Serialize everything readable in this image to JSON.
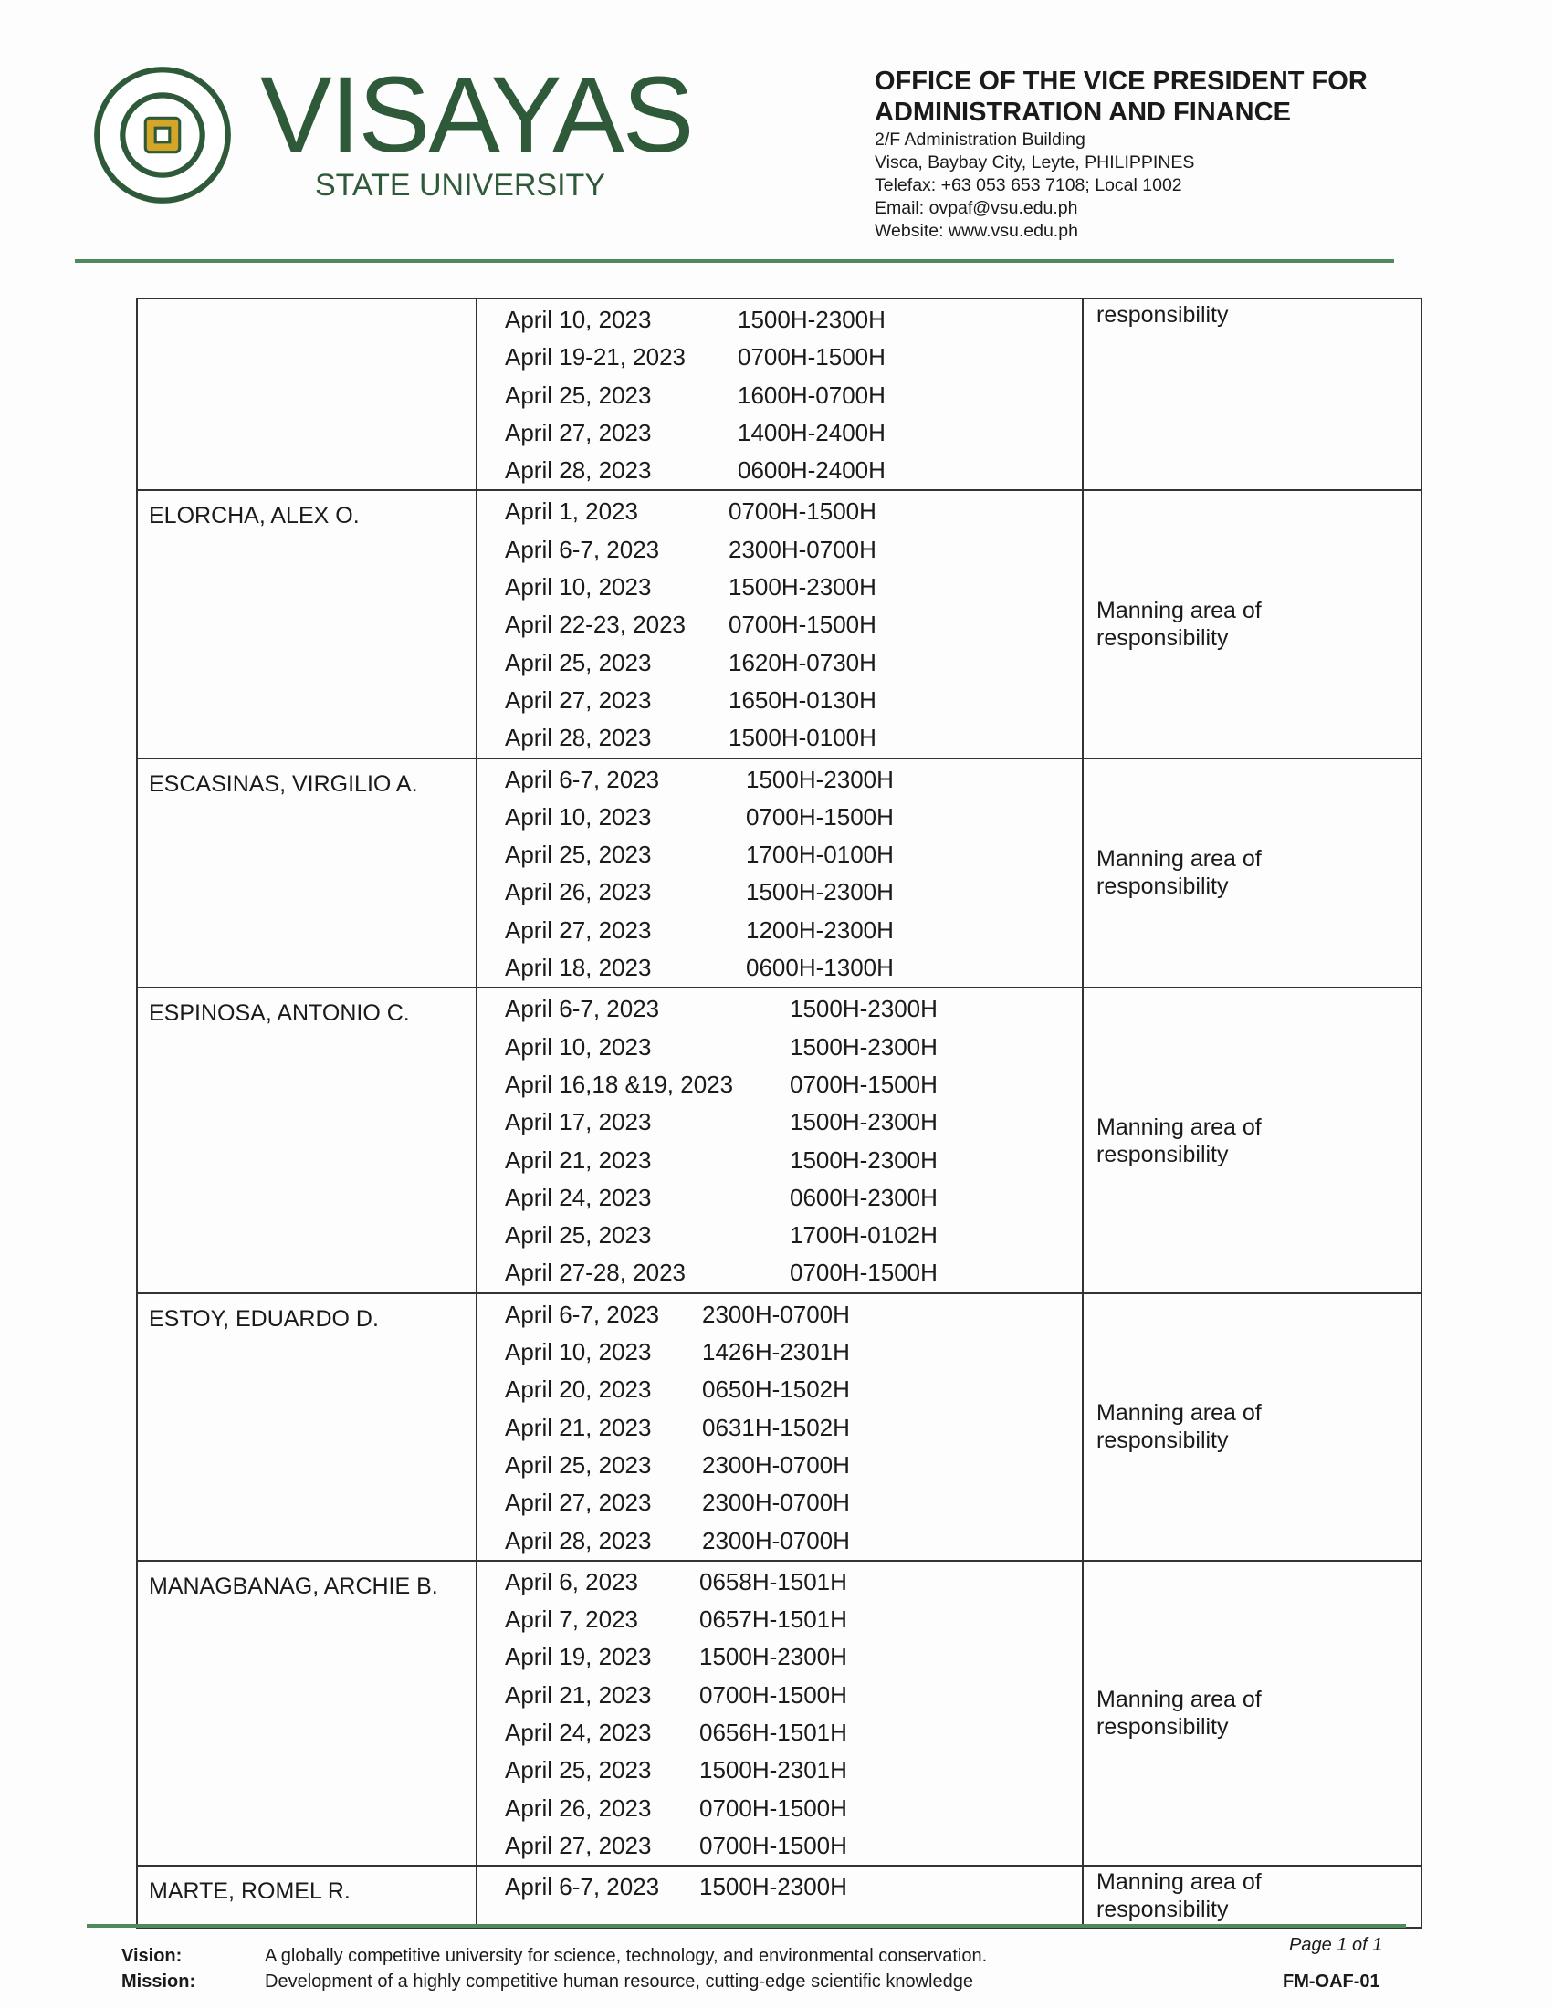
{
  "header": {
    "university_name": "VISAYAS",
    "university_sub": "STATE UNIVERSITY",
    "seal_text": "VISAYAS STATE UNIVERSITY",
    "office_line1": "OFFICE OF THE VICE PRESIDENT FOR",
    "office_line2": "ADMINISTRATION AND FINANCE",
    "address1": "2/F Administration Building",
    "address2": "Visca, Baybay City, Leyte, PHILIPPINES",
    "telefax": "Telefax: +63 053 653 7108; Local 1002",
    "email": "Email: ovpaf@vsu.edu.ph",
    "website": "Website: www.vsu.edu.ph",
    "accent_color": "#4f8a5b"
  },
  "table": {
    "rows": [
      {
        "name": "",
        "remark": "responsibility",
        "entries": [
          [
            "April 10, 2023",
            "1500H-2300H"
          ],
          [
            "April 19-21, 2023",
            "0700H-1500H"
          ],
          [
            "April 25, 2023",
            "1600H-0700H"
          ],
          [
            "April 27, 2023",
            "1400H-2400H"
          ],
          [
            "April 28, 2023",
            "0600H-2400H"
          ]
        ]
      },
      {
        "name": "ELORCHA, ALEX O.",
        "remark": "Manning area of responsibility",
        "entries": [
          [
            "April 1, 2023",
            "0700H-1500H"
          ],
          [
            "April 6-7, 2023",
            "2300H-0700H"
          ],
          [
            "April 10, 2023",
            "1500H-2300H"
          ],
          [
            "April 22-23, 2023",
            "0700H-1500H"
          ],
          [
            "April 25, 2023",
            "1620H-0730H"
          ],
          [
            "April 27, 2023",
            "1650H-0130H"
          ],
          [
            "April 28, 2023",
            "1500H-0100H"
          ]
        ]
      },
      {
        "name": "ESCASINAS, VIRGILIO A.",
        "remark": "Manning area of responsibility",
        "entries": [
          [
            "April 6-7, 2023",
            "1500H-2300H"
          ],
          [
            "April 10, 2023",
            "0700H-1500H"
          ],
          [
            "April 25, 2023",
            "1700H-0100H"
          ],
          [
            "April 26, 2023",
            "1500H-2300H"
          ],
          [
            "April 27, 2023",
            "1200H-2300H"
          ],
          [
            "April 18, 2023",
            "0600H-1300H"
          ]
        ]
      },
      {
        "name": "ESPINOSA, ANTONIO C.",
        "remark": "Manning area of responsibility",
        "entries": [
          [
            "April 6-7, 2023",
            "1500H-2300H"
          ],
          [
            "April 10, 2023",
            "1500H-2300H"
          ],
          [
            "April 16,18 &19, 2023",
            "0700H-1500H"
          ],
          [
            "April 17, 2023",
            "1500H-2300H"
          ],
          [
            "April 21, 2023",
            "1500H-2300H"
          ],
          [
            "April 24, 2023",
            "0600H-2300H"
          ],
          [
            "April 25, 2023",
            "1700H-0102H"
          ],
          [
            "April 27-28, 2023",
            "0700H-1500H"
          ]
        ]
      },
      {
        "name": "ESTOY, EDUARDO D.",
        "remark": "Manning area of responsibility",
        "entries": [
          [
            "April 6-7, 2023",
            "2300H-0700H"
          ],
          [
            "April 10, 2023",
            "1426H-2301H"
          ],
          [
            "April 20, 2023",
            "0650H-1502H"
          ],
          [
            "April 21, 2023",
            "0631H-1502H"
          ],
          [
            "April 25, 2023",
            "2300H-0700H"
          ],
          [
            "April 27, 2023",
            "2300H-0700H"
          ],
          [
            "April 28, 2023",
            "2300H-0700H"
          ]
        ]
      },
      {
        "name": "MANAGBANAG, ARCHIE B.",
        "remark": "Manning area of responsibility",
        "entries": [
          [
            "April 6, 2023",
            "0658H-1501H"
          ],
          [
            "April 7, 2023",
            "0657H-1501H"
          ],
          [
            "April 19, 2023",
            "1500H-2300H"
          ],
          [
            "April 21, 2023",
            "0700H-1500H"
          ],
          [
            "April 24, 2023",
            "0656H-1501H"
          ],
          [
            "April 25, 2023",
            "1500H-2301H"
          ],
          [
            "April 26, 2023",
            "0700H-1500H"
          ],
          [
            "April 27, 2023",
            "0700H-1500H"
          ]
        ]
      },
      {
        "name": "MARTE, ROMEL R.",
        "remark": "Manning area of responsibility",
        "entries": [
          [
            "April 6-7, 2023",
            "1500H-2300H"
          ]
        ]
      }
    ]
  },
  "footer": {
    "vision_label": "Vision:",
    "vision_text": "A globally competitive university for science, technology, and environmental conservation.",
    "mission_label": "Mission:",
    "mission_text": "Development of a highly competitive human resource, cutting-edge scientific knowledge",
    "page": "Page 1 of 1",
    "form_code": "FM-OAF-01"
  }
}
